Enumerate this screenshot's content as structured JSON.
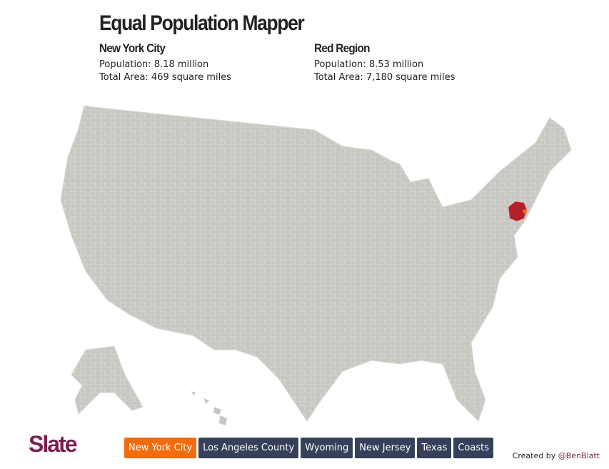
{
  "header": {
    "title": "Equal Population Mapper"
  },
  "panels": [
    {
      "title": "New York City",
      "lines": [
        "Population: 8.18 million",
        "Total Area: 469 square miles"
      ]
    },
    {
      "title": "Red Region",
      "lines": [
        "Population: 8.53 million",
        "Total Area: 7,180 square miles"
      ]
    }
  ],
  "footer": {
    "logo": "Slate",
    "buttons": [
      "New York City",
      "Los Angeles County",
      "Wyoming",
      "New Jersey",
      "Texas",
      "Coasts"
    ],
    "credit": "Created by",
    "credit_handle": "@BenBlatt"
  }
}
